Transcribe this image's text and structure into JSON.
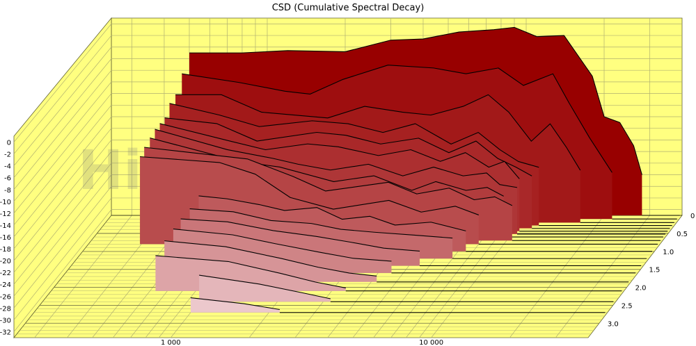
{
  "chart_data": {
    "type": "area",
    "title": "CSD (Cumulative Spectral Decay)",
    "watermark": "HiFiCompass.com",
    "xscale": "log",
    "xlim": [
      250,
      40000
    ],
    "xticks": [
      1000,
      10000
    ],
    "xtick_labels": [
      "1 000",
      "10 000"
    ],
    "ylim": [
      -33,
      1
    ],
    "yticks": [
      0,
      -2,
      -4,
      -6,
      -8,
      -10,
      -12,
      -14,
      -16,
      -18,
      -20,
      -22,
      -24,
      -26,
      -28,
      -30,
      -32
    ],
    "ytick_labels": [
      "0",
      "-2",
      "-4",
      "-6",
      "-8",
      "-10",
      "-12",
      "-14",
      "-16",
      "-18",
      "-20",
      "-22",
      "-24",
      "-26",
      "-28",
      "-30",
      "-32"
    ],
    "zlim": [
      0,
      3.4
    ],
    "zticks": [
      0,
      0.5,
      1.0,
      1.5,
      2.0,
      2.5,
      3.0
    ],
    "ztick_labels": [
      "0",
      "0.5",
      "1.0",
      "1.5",
      "2.0",
      "2.5",
      "3.0"
    ],
    "colors": {
      "panel": "#ffff80",
      "grid": "#b0b070",
      "front": "#ecc8cc",
      "back": "#980000"
    },
    "series": [
      {
        "z": 0.0,
        "start": 500,
        "values": [
          [
            500,
            -5
          ],
          [
            800,
            -5
          ],
          [
            1200,
            -4.6
          ],
          [
            2000,
            -4.8
          ],
          [
            3000,
            -2.8
          ],
          [
            4000,
            -2.6
          ],
          [
            5500,
            -1.4
          ],
          [
            7500,
            -1.0
          ],
          [
            9000,
            -0.6
          ],
          [
            11000,
            -2.2
          ],
          [
            14000,
            -2.0
          ],
          [
            18000,
            -9
          ],
          [
            20000,
            -16
          ],
          [
            23000,
            -17
          ],
          [
            26000,
            -21
          ],
          [
            28000,
            -26
          ]
        ]
      },
      {
        "z": 0.1,
        "start": 480,
        "values": [
          [
            480,
            -8
          ],
          [
            800,
            -9.5
          ],
          [
            1200,
            -11
          ],
          [
            1500,
            -11.5
          ],
          [
            2000,
            -9
          ],
          [
            3000,
            -6.5
          ],
          [
            4500,
            -7
          ],
          [
            6000,
            -8
          ],
          [
            8000,
            -7
          ],
          [
            10000,
            -10
          ],
          [
            13000,
            -8
          ],
          [
            15000,
            -13
          ],
          [
            18000,
            -19
          ],
          [
            22000,
            -25
          ]
        ]
      },
      {
        "z": 0.2,
        "start": 465,
        "values": [
          [
            465,
            -11
          ],
          [
            700,
            -11
          ],
          [
            1000,
            -14
          ],
          [
            1800,
            -15
          ],
          [
            2500,
            -13
          ],
          [
            3500,
            -14
          ],
          [
            4500,
            -14.5
          ],
          [
            6000,
            -13
          ],
          [
            7500,
            -11
          ],
          [
            9000,
            -14
          ],
          [
            11000,
            -19
          ],
          [
            13000,
            -16
          ],
          [
            15000,
            -20
          ],
          [
            17000,
            -24
          ]
        ]
      },
      {
        "z": 0.28,
        "start": 450,
        "values": [
          [
            450,
            -12
          ],
          [
            700,
            -14
          ],
          [
            1000,
            -16
          ],
          [
            1600,
            -15
          ],
          [
            2200,
            -15.5
          ],
          [
            3000,
            -17
          ],
          [
            4000,
            -15.5
          ],
          [
            5500,
            -19
          ],
          [
            7000,
            -17
          ],
          [
            8500,
            -20
          ],
          [
            10000,
            -22
          ],
          [
            12000,
            -23
          ]
        ]
      },
      {
        "z": 0.36,
        "start": 440,
        "values": [
          [
            440,
            -14
          ],
          [
            700,
            -15
          ],
          [
            1000,
            -18
          ],
          [
            1700,
            -16.5
          ],
          [
            2200,
            -17
          ],
          [
            3000,
            -18.5
          ],
          [
            4200,
            -17.5
          ],
          [
            5500,
            -20
          ],
          [
            7000,
            -18
          ],
          [
            8500,
            -21
          ],
          [
            10000,
            -22.5
          ],
          [
            11500,
            -24
          ]
        ]
      },
      {
        "z": 0.44,
        "start": 430,
        "values": [
          [
            430,
            -14.5
          ],
          [
            800,
            -17.5
          ],
          [
            1100,
            -19
          ],
          [
            1600,
            -18
          ],
          [
            2100,
            -18.5
          ],
          [
            3000,
            -20
          ],
          [
            4000,
            -19
          ],
          [
            5200,
            -21
          ],
          [
            6500,
            -19.5
          ],
          [
            8000,
            -22
          ],
          [
            9200,
            -21
          ],
          [
            10500,
            -24
          ]
        ]
      },
      {
        "z": 0.52,
        "start": 420,
        "values": [
          [
            420,
            -15
          ],
          [
            800,
            -18.5
          ],
          [
            1200,
            -20
          ],
          [
            1500,
            -21
          ],
          [
            2000,
            -22
          ],
          [
            2800,
            -21
          ],
          [
            3800,
            -23
          ],
          [
            5000,
            -21.5
          ],
          [
            6500,
            -23
          ],
          [
            8000,
            -22.5
          ],
          [
            9000,
            -24.5
          ],
          [
            10500,
            -25
          ]
        ]
      },
      {
        "z": 0.6,
        "start": 410,
        "values": [
          [
            410,
            -16
          ],
          [
            900,
            -20
          ],
          [
            1300,
            -21
          ],
          [
            2100,
            -23.5
          ],
          [
            3000,
            -22.5
          ],
          [
            4200,
            -25
          ],
          [
            5200,
            -23.5
          ],
          [
            6800,
            -25
          ],
          [
            8200,
            -24.5
          ],
          [
            9500,
            -26
          ]
        ]
      },
      {
        "z": 0.7,
        "start": 400,
        "values": [
          [
            400,
            -17
          ],
          [
            1000,
            -19
          ],
          [
            1500,
            -22
          ],
          [
            2000,
            -24.5
          ],
          [
            3500,
            -23
          ],
          [
            4500,
            -25
          ],
          [
            6000,
            -24
          ],
          [
            7500,
            -26
          ],
          [
            9000,
            -25.5
          ],
          [
            10500,
            -27
          ]
        ]
      },
      {
        "z": 0.8,
        "start": 395,
        "values": [
          [
            395,
            -18
          ],
          [
            800,
            -19
          ],
          [
            1100,
            -21
          ],
          [
            1500,
            -25
          ],
          [
            2200,
            -27
          ],
          [
            3600,
            -25.5
          ],
          [
            4800,
            -27.5
          ],
          [
            6500,
            -26.5
          ],
          [
            8000,
            -28
          ]
        ]
      },
      {
        "z": 1.0,
        "start": 700,
        "values": [
          [
            700,
            -23.5
          ],
          [
            900,
            -24
          ],
          [
            1200,
            -25
          ],
          [
            1500,
            -26
          ],
          [
            2000,
            -25.5
          ],
          [
            2500,
            -27.5
          ],
          [
            3200,
            -27
          ],
          [
            4000,
            -28.5
          ],
          [
            5500,
            -28
          ],
          [
            7500,
            -29.5
          ]
        ]
      },
      {
        "z": 1.2,
        "start": 680,
        "values": [
          [
            680,
            -24.5
          ],
          [
            1000,
            -25
          ],
          [
            1400,
            -26.5
          ],
          [
            2000,
            -27
          ],
          [
            2600,
            -28
          ],
          [
            3500,
            -28.5
          ],
          [
            5000,
            -29
          ],
          [
            7000,
            -29.5
          ]
        ]
      },
      {
        "z": 1.4,
        "start": 660,
        "values": [
          [
            660,
            -25
          ],
          [
            1000,
            -25.5
          ],
          [
            1500,
            -27
          ],
          [
            2200,
            -28
          ],
          [
            3000,
            -29
          ],
          [
            4000,
            -30
          ],
          [
            5500,
            -30.5
          ]
        ]
      },
      {
        "z": 1.6,
        "start": 650,
        "values": [
          [
            650,
            -25.5
          ],
          [
            1100,
            -26.5
          ],
          [
            1600,
            -28
          ],
          [
            2400,
            -29.5
          ],
          [
            3200,
            -30.5
          ],
          [
            4500,
            -31
          ]
        ]
      },
      {
        "z": 1.85,
        "start": 640,
        "values": [
          [
            640,
            -26
          ],
          [
            1100,
            -27
          ],
          [
            1800,
            -29
          ],
          [
            2500,
            -30.5
          ],
          [
            3300,
            -31.5
          ],
          [
            4200,
            -32
          ]
        ]
      },
      {
        "z": 2.1,
        "start": 630,
        "values": [
          [
            630,
            -27
          ],
          [
            1200,
            -28
          ],
          [
            1900,
            -30
          ],
          [
            2600,
            -31.5
          ],
          [
            3400,
            -32.5
          ]
        ]
      },
      {
        "z": 2.4,
        "start": 1000,
        "values": [
          [
            1000,
            -28.5
          ],
          [
            1700,
            -30
          ],
          [
            2500,
            -31.5
          ],
          [
            3200,
            -32.5
          ]
        ]
      },
      {
        "z": 2.7,
        "start": 1000,
        "values": [
          [
            1000,
            -30.5
          ],
          [
            1600,
            -31.5
          ],
          [
            2200,
            -32.5
          ]
        ]
      }
    ]
  }
}
